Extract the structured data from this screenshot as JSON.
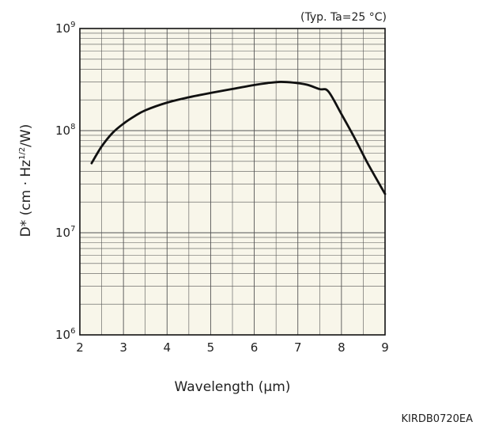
{
  "chart_data": {
    "type": "line",
    "title": "",
    "condition_note": "(Typ. Ta=25 °C)",
    "figure_code": "KIRDB0720EA",
    "xlabel": "Wavelength (µm)",
    "ylabel": {
      "base": "D* (cm · Hz",
      "sup": "1/2",
      "end": "/W)"
    },
    "xlim": [
      2,
      9
    ],
    "ylim": [
      1000000,
      1000000000
    ],
    "y_scale": "log",
    "grid": true,
    "x_ticks": [
      {
        "value": 2,
        "label": "2"
      },
      {
        "value": 3,
        "label": "3"
      },
      {
        "value": 4,
        "label": "4"
      },
      {
        "value": 5,
        "label": "5"
      },
      {
        "value": 6,
        "label": "6"
      },
      {
        "value": 7,
        "label": "7"
      },
      {
        "value": 8,
        "label": "8"
      },
      {
        "value": 9,
        "label": "9"
      }
    ],
    "y_ticks": [
      {
        "value": 1000000,
        "base": "10",
        "exp": "6"
      },
      {
        "value": 10000000,
        "base": "10",
        "exp": "7"
      },
      {
        "value": 100000000,
        "base": "10",
        "exp": "8"
      },
      {
        "value": 1000000000,
        "base": "10",
        "exp": "9"
      }
    ],
    "series": [
      {
        "x": [
          2.27,
          2.5,
          2.75,
          3.0,
          3.25,
          3.5,
          4.0,
          4.5,
          5.0,
          5.5,
          6.0,
          6.3,
          6.6,
          6.9,
          7.2,
          7.5,
          7.7,
          8.0,
          8.3,
          8.6,
          9.0
        ],
        "y": [
          48000000,
          70000000,
          95000000,
          117000000,
          138000000,
          158000000,
          188000000,
          212000000,
          234000000,
          256000000,
          280000000,
          292000000,
          300000000,
          295000000,
          282000000,
          255000000,
          242000000,
          145000000,
          85000000,
          48000000,
          24000000
        ]
      }
    ]
  },
  "colors": {
    "plot_background": "#f8f6ea",
    "grid": "#555555",
    "line": "#111111"
  }
}
